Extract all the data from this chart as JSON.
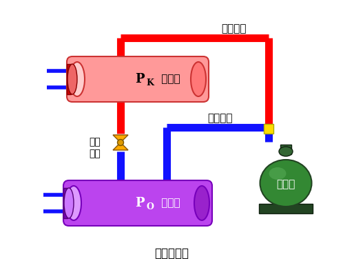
{
  "title": "压缩式制冷",
  "label_high_pressure": "高压部分",
  "label_low_pressure": "低压部分",
  "label_compressor": "压缩机",
  "label_valve": "节流\n机构",
  "condenser_P": "P",
  "condenser_sub": "K",
  "condenser_rest": " 冷凝器",
  "evaporator_P": "P",
  "evaporator_sub": "O",
  "evaporator_rest": " 蒸发器",
  "bg_color": "#ffffff",
  "red_color": "#ff0000",
  "blue_color": "#1111ff",
  "cond_body": "#ff9999",
  "cond_left_cap": "#ffcccc",
  "cond_right_cap": "#ff7777",
  "evap_body": "#bb44ee",
  "evap_left_cap": "#dd99ff",
  "evap_right_cap": "#9922cc",
  "comp_body": "#338833",
  "comp_dark": "#224422",
  "comp_base": "#224422",
  "valve_color": "#ffaa00",
  "yellow_color": "#ffdd00",
  "pipe_lw": 8
}
